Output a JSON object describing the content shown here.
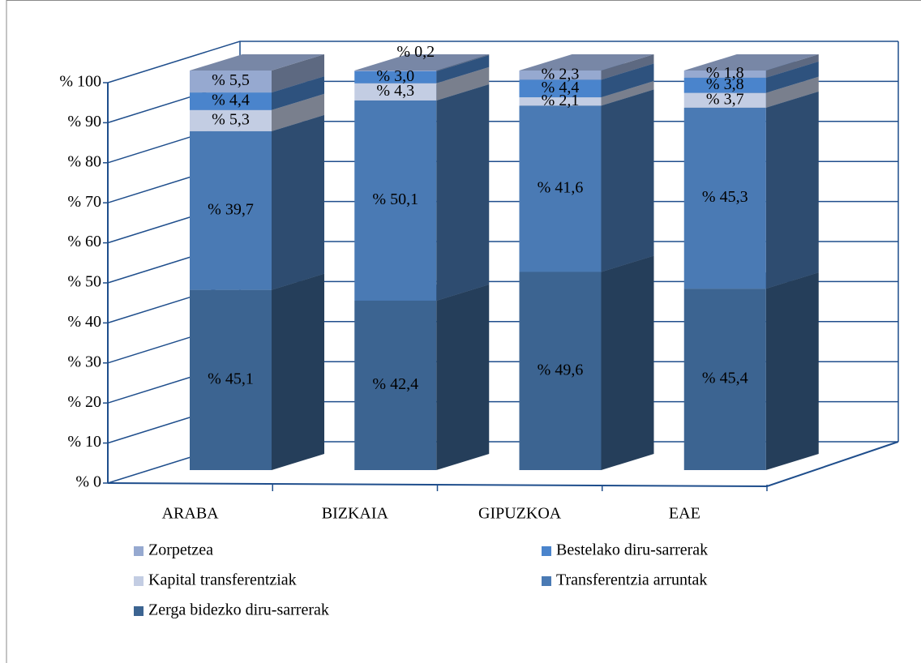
{
  "chart_data": {
    "type": "bar3d_stacked",
    "categories": [
      "ARABA",
      "BIZKAIA",
      "GIPUZKOA",
      "EAE"
    ],
    "series": [
      {
        "name": "Zerga bidezko diru-sarrerak",
        "color": "#3c6491",
        "values": [
          45.1,
          42.4,
          49.6,
          45.4
        ],
        "value_labels": [
          "% 45,1",
          "% 42,4",
          "% 49,6",
          "% 45,4"
        ]
      },
      {
        "name": "Transferentzia arruntak",
        "color": "#4a7ab4",
        "values": [
          39.7,
          50.1,
          41.6,
          45.3
        ],
        "value_labels": [
          "% 39,7",
          "% 50,1",
          "% 41,6",
          "% 45,3"
        ]
      },
      {
        "name": "Kapital transferentziak",
        "color": "#c3cde3",
        "values": [
          5.3,
          4.3,
          2.1,
          3.7
        ],
        "value_labels": [
          "% 5,3",
          "% 4,3",
          "% 2,1",
          "% 3,7"
        ]
      },
      {
        "name": "Bestelako diru-sarrerak",
        "color": "#4a84cc",
        "values": [
          4.4,
          3.0,
          4.4,
          3.8
        ],
        "value_labels": [
          "% 4,4",
          "% 3,0",
          "% 4,4",
          "% 3,8"
        ]
      },
      {
        "name": "Zorpetzea",
        "color": "#96a9d0",
        "values": [
          5.5,
          0.2,
          2.3,
          1.8
        ],
        "value_labels": [
          "% 5,5",
          "% 0,2",
          "% 2,3",
          "% 1,8"
        ]
      }
    ],
    "ylim": [
      0,
      100
    ],
    "yticks": [
      {
        "value": 0,
        "label": "% 0"
      },
      {
        "value": 10,
        "label": "% 10"
      },
      {
        "value": 20,
        "label": "% 20"
      },
      {
        "value": 30,
        "label": "% 30"
      },
      {
        "value": 40,
        "label": "% 40"
      },
      {
        "value": 50,
        "label": "% 50"
      },
      {
        "value": 60,
        "label": "% 60"
      },
      {
        "value": 70,
        "label": "% 70"
      },
      {
        "value": 80,
        "label": "% 80"
      },
      {
        "value": 90,
        "label": "% 90"
      },
      {
        "value": 100,
        "label": "% 100"
      }
    ],
    "grid": true
  }
}
